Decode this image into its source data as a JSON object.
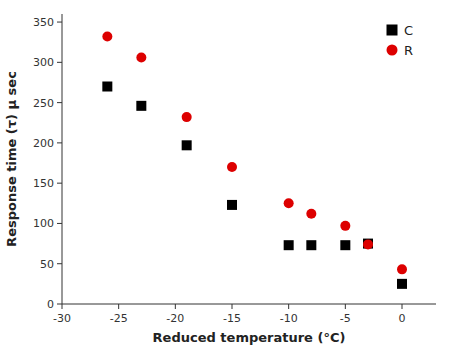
{
  "chart_data": {
    "type": "scatter",
    "xlabel": "Reduced temperature (°C)",
    "ylabel": "Response time (τ) μ sec",
    "x": [
      -26,
      -23,
      -19,
      -15,
      -10,
      -8,
      -5,
      -3,
      0
    ],
    "series": [
      {
        "name": "C",
        "color": "#000000",
        "marker": "square",
        "values": [
          270,
          246,
          197,
          123,
          73,
          73,
          73,
          75,
          25
        ]
      },
      {
        "name": "R",
        "color": "#dd0000",
        "marker": "circle",
        "values": [
          332,
          306,
          232,
          170,
          125,
          112,
          97,
          74,
          43
        ]
      }
    ],
    "xlim": [
      -30,
      3
    ],
    "ylim": [
      0,
      360
    ],
    "xticks": [
      -30,
      -25,
      -20,
      -15,
      -10,
      -5,
      0
    ],
    "yticks": [
      0,
      50,
      100,
      150,
      200,
      250,
      300,
      350
    ],
    "grid": false,
    "legend": "upper right"
  }
}
